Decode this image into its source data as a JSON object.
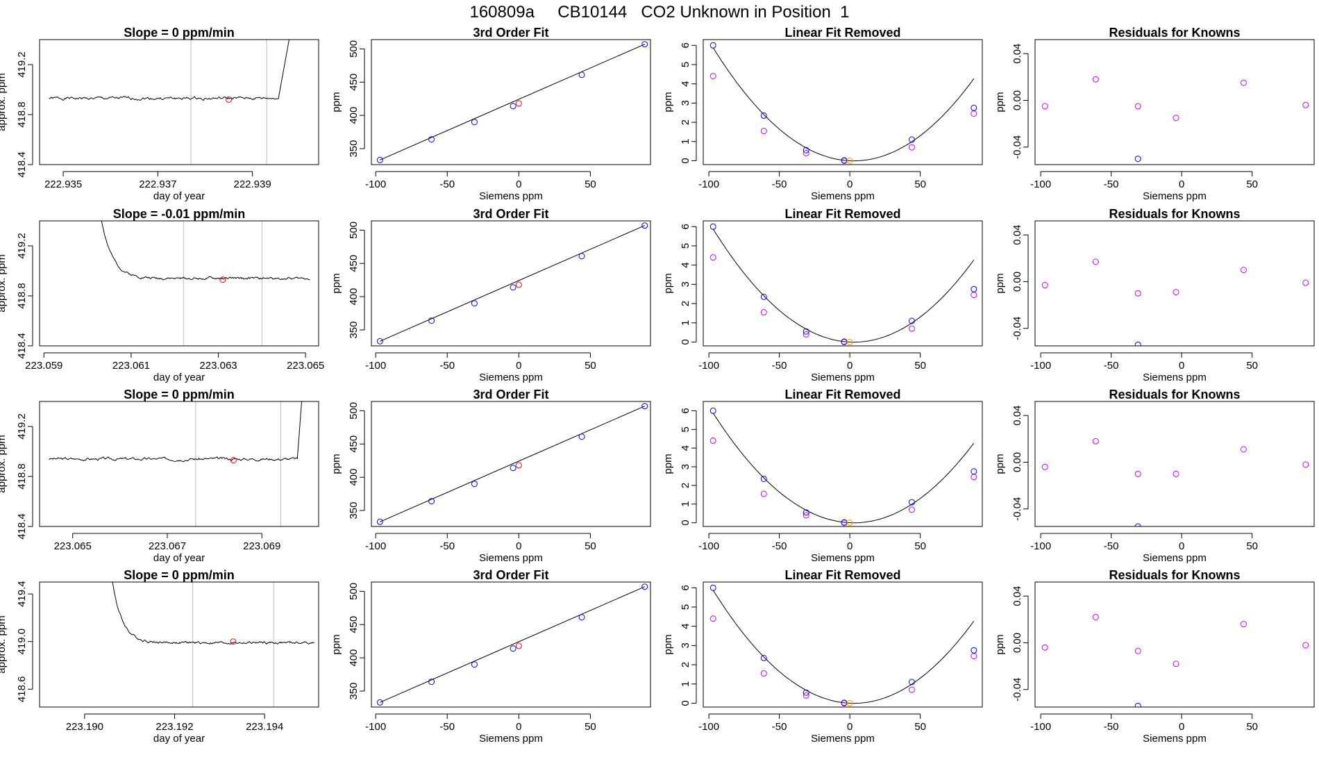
{
  "page": {
    "title": "160809a     CB10144   CO2 Unknown in Position  1"
  },
  "colors": {
    "raw_trace": "#000000",
    "marker_red": "#ff0000",
    "marker_blue": "#0000ff",
    "marker_magenta": "#cc00ff",
    "marker_orange": "#ff9900",
    "vline": "#bbbbbb",
    "fit_line": "#000000"
  },
  "chart_data": [
    {
      "type": "line",
      "title": "Slope =  0  ppm/min",
      "xlabel": "day of year",
      "ylabel": "approx. ppm",
      "xlim": [
        222.9345,
        222.9404
      ],
      "ylim": [
        418.4,
        419.4
      ],
      "xticks": [
        "222.935",
        "222.937",
        "222.939"
      ],
      "xtick_values": [
        222.935,
        222.937,
        222.939
      ],
      "yticks": [
        "418.4",
        "418.8",
        "419.2"
      ],
      "ytick_values": [
        418.4,
        418.8,
        419.2
      ],
      "vlines": [
        222.9377,
        222.9393
      ],
      "trace": {
        "x_start": 222.9347,
        "x_end": 222.93955,
        "y_level": 418.93,
        "noise": 0.012,
        "seed": 1,
        "rise": {
          "x_start": 222.93955,
          "x_end": 222.9398,
          "y_end": 419.45
        }
      },
      "marker": {
        "x": 222.9385,
        "y": 418.92
      }
    },
    {
      "type": "scatter",
      "title": "3rd Order Fit",
      "xlabel": "Siemens ppm",
      "ylabel": "ppm",
      "xlim": [
        -103,
        92
      ],
      "ylim": [
        326,
        514
      ],
      "xticks": [
        "-100",
        "-50",
        "0",
        "50"
      ],
      "xtick_values": [
        -100,
        -50,
        0,
        50
      ],
      "yticks": [
        "350",
        "400",
        "450",
        "500"
      ],
      "ytick_values": [
        350,
        400,
        450,
        500
      ],
      "line": {
        "x": [
          -97,
          88
        ],
        "y": [
          333,
          507
        ]
      },
      "points_blue": {
        "x": [
          -97,
          -61,
          -31,
          -4,
          44,
          88
        ],
        "y": [
          333,
          364,
          390,
          414,
          461,
          507
        ]
      },
      "points_red": {
        "x": [
          0
        ],
        "y": [
          418
        ]
      }
    },
    {
      "type": "scatter",
      "title": "Linear Fit Removed",
      "xlabel": "Siemens ppm",
      "ylabel": "ppm",
      "xlim": [
        -104,
        94
      ],
      "ylim": [
        -0.2,
        6.3
      ],
      "xticks": [
        "-100",
        "-50",
        "0",
        "50"
      ],
      "xtick_values": [
        -100,
        -50,
        0,
        50
      ],
      "yticks": [
        "0",
        "1",
        "2",
        "3",
        "4",
        "5",
        "6"
      ],
      "ytick_values": [
        0,
        1,
        2,
        3,
        4,
        5,
        6
      ],
      "curve": {
        "a": 0.00059,
        "b": -0.0034,
        "c": 0.0
      },
      "points_blue": {
        "x": [
          -97,
          -61,
          -31,
          -4,
          44,
          88
        ],
        "y": [
          6.0,
          2.35,
          0.55,
          0.02,
          1.1,
          2.75
        ]
      },
      "points_magenta": {
        "x": [
          -97,
          -61,
          -31,
          -4,
          44,
          88
        ],
        "y": [
          4.4,
          1.55,
          0.4,
          0.0,
          0.7,
          2.45
        ]
      },
      "points_orange": {
        "x": [
          0
        ],
        "y": [
          0.0
        ]
      }
    },
    {
      "type": "scatter",
      "title": "Residuals for Knowns",
      "xlabel": "Siemens ppm",
      "ylabel": "ppm",
      "xlim": [
        -104,
        94
      ],
      "ylim": [
        -0.055,
        0.052
      ],
      "xticks": [
        "-100",
        "-50",
        "0",
        "50"
      ],
      "xtick_values": [
        -100,
        -50,
        0,
        50
      ],
      "yticks": [
        "-0.04",
        "0.00",
        "0.04"
      ],
      "ytick_values": [
        -0.04,
        0.0,
        0.04
      ],
      "points_magenta": {
        "x": [
          -97,
          -61,
          -31,
          -4,
          44,
          88
        ],
        "y": [
          -0.005,
          0.018,
          -0.005,
          -0.015,
          0.015,
          -0.004
        ]
      },
      "points_blue": {
        "x": [
          -31
        ],
        "y": [
          -0.05
        ]
      }
    },
    {
      "type": "line",
      "title": "Slope =  -0.01  ppm/min",
      "xlabel": "day of year",
      "ylabel": "approx. ppm",
      "xlim": [
        223.0589,
        223.0653
      ],
      "ylim": [
        418.4,
        419.4
      ],
      "xticks": [
        "223.059",
        "223.061",
        "223.063",
        "223.065"
      ],
      "xtick_values": [
        223.059,
        223.061,
        223.063,
        223.065
      ],
      "yticks": [
        "418.4",
        "418.8",
        "419.2"
      ],
      "ytick_values": [
        418.4,
        418.8,
        419.2
      ],
      "vlines": [
        223.0622,
        223.064
      ],
      "trace": {
        "x_start": 223.0603,
        "x_end": 223.0651,
        "y_level": 418.94,
        "noise": 0.01,
        "seed": 2,
        "decay": {
          "y_start": 419.45,
          "tau": 0.00025
        }
      },
      "marker": {
        "x": 223.0631,
        "y": 418.93
      }
    },
    {
      "type": "scatter",
      "title": "3rd Order Fit",
      "xlabel": "Siemens ppm",
      "ylabel": "ppm",
      "xlim": [
        -103,
        92
      ],
      "ylim": [
        326,
        514
      ],
      "xticks": [
        "-100",
        "-50",
        "0",
        "50"
      ],
      "xtick_values": [
        -100,
        -50,
        0,
        50
      ],
      "yticks": [
        "350",
        "400",
        "450",
        "500"
      ],
      "ytick_values": [
        350,
        400,
        450,
        500
      ],
      "line": {
        "x": [
          -97,
          88
        ],
        "y": [
          333,
          507
        ]
      },
      "points_blue": {
        "x": [
          -97,
          -61,
          -31,
          -4,
          44,
          88
        ],
        "y": [
          333,
          364,
          390,
          414,
          461,
          507
        ]
      },
      "points_red": {
        "x": [
          0
        ],
        "y": [
          418
        ]
      }
    },
    {
      "type": "scatter",
      "title": "Linear Fit Removed",
      "xlabel": "Siemens ppm",
      "ylabel": "ppm",
      "xlim": [
        -104,
        94
      ],
      "ylim": [
        -0.2,
        6.3
      ],
      "xticks": [
        "-100",
        "-50",
        "0",
        "50"
      ],
      "xtick_values": [
        -100,
        -50,
        0,
        50
      ],
      "yticks": [
        "0",
        "1",
        "2",
        "3",
        "4",
        "5",
        "6"
      ],
      "ytick_values": [
        0,
        1,
        2,
        3,
        4,
        5,
        6
      ],
      "curve": {
        "a": 0.00059,
        "b": -0.0034,
        "c": 0.0
      },
      "points_blue": {
        "x": [
          -97,
          -61,
          -31,
          -4,
          44,
          88
        ],
        "y": [
          6.0,
          2.35,
          0.55,
          0.02,
          1.1,
          2.75
        ]
      },
      "points_magenta": {
        "x": [
          -97,
          -61,
          -31,
          -4,
          44,
          88
        ],
        "y": [
          4.4,
          1.55,
          0.4,
          0.0,
          0.7,
          2.45
        ]
      },
      "points_orange": {
        "x": [
          0
        ],
        "y": [
          0.0
        ]
      }
    },
    {
      "type": "scatter",
      "title": "Residuals for Knowns",
      "xlabel": "Siemens ppm",
      "ylabel": "ppm",
      "xlim": [
        -104,
        94
      ],
      "ylim": [
        -0.055,
        0.052
      ],
      "xticks": [
        "-100",
        "-50",
        "0",
        "50"
      ],
      "xtick_values": [
        -100,
        -50,
        0,
        50
      ],
      "yticks": [
        "-0.04",
        "0.00",
        "0.04"
      ],
      "ytick_values": [
        -0.04,
        0.0,
        0.04
      ],
      "points_magenta": {
        "x": [
          -97,
          -61,
          -31,
          -4,
          44,
          88
        ],
        "y": [
          -0.003,
          0.017,
          -0.01,
          -0.009,
          0.01,
          -0.001
        ]
      },
      "points_blue": {
        "x": [
          -31
        ],
        "y": [
          -0.054
        ]
      }
    },
    {
      "type": "line",
      "title": "Slope =  0  ppm/min",
      "xlabel": "day of year",
      "ylabel": "approx. ppm",
      "xlim": [
        223.0643,
        223.0702
      ],
      "ylim": [
        418.4,
        419.4
      ],
      "xticks": [
        "223.065",
        "223.067",
        "223.069"
      ],
      "xtick_values": [
        223.065,
        223.067,
        223.069
      ],
      "yticks": [
        "418.4",
        "418.8",
        "419.2"
      ],
      "ytick_values": [
        418.4,
        418.8,
        419.2
      ],
      "vlines": [
        223.0676,
        223.0694
      ],
      "trace": {
        "x_start": 223.0645,
        "x_end": 223.06975,
        "y_level": 418.94,
        "noise": 0.012,
        "seed": 3,
        "rise": {
          "x_start": 223.06975,
          "x_end": 223.06985,
          "y_end": 419.45
        }
      },
      "marker": {
        "x": 223.0684,
        "y": 418.93
      }
    },
    {
      "type": "scatter",
      "title": "3rd Order Fit",
      "xlabel": "Siemens ppm",
      "ylabel": "ppm",
      "xlim": [
        -103,
        92
      ],
      "ylim": [
        326,
        514
      ],
      "xticks": [
        "-100",
        "-50",
        "0",
        "50"
      ],
      "xtick_values": [
        -100,
        -50,
        0,
        50
      ],
      "yticks": [
        "350",
        "400",
        "450",
        "500"
      ],
      "ytick_values": [
        350,
        400,
        450,
        500
      ],
      "line": {
        "x": [
          -97,
          88
        ],
        "y": [
          333,
          507
        ]
      },
      "points_blue": {
        "x": [
          -97,
          -61,
          -31,
          -4,
          44,
          88
        ],
        "y": [
          333,
          364,
          390,
          414,
          461,
          507
        ]
      },
      "points_red": {
        "x": [
          0
        ],
        "y": [
          418
        ]
      }
    },
    {
      "type": "scatter",
      "title": "Linear Fit Removed",
      "xlabel": "Siemens ppm",
      "ylabel": "ppm",
      "xlim": [
        -104,
        94
      ],
      "ylim": [
        -0.2,
        6.5
      ],
      "xticks": [
        "-100",
        "-50",
        "0",
        "50"
      ],
      "xtick_values": [
        -100,
        -50,
        0,
        50
      ],
      "yticks": [
        "0",
        "1",
        "2",
        "3",
        "4",
        "5",
        "6"
      ],
      "ytick_values": [
        0,
        1,
        2,
        3,
        4,
        5,
        6
      ],
      "curve": {
        "a": 0.00059,
        "b": -0.0034,
        "c": 0.0
      },
      "points_blue": {
        "x": [
          -97,
          -61,
          -31,
          -4,
          44,
          88
        ],
        "y": [
          6.0,
          2.35,
          0.55,
          0.02,
          1.1,
          2.75
        ]
      },
      "points_magenta": {
        "x": [
          -97,
          -61,
          -31,
          -4,
          44,
          88
        ],
        "y": [
          4.4,
          1.55,
          0.4,
          0.0,
          0.7,
          2.45
        ]
      },
      "points_orange": {
        "x": [
          0
        ],
        "y": [
          0.0
        ]
      }
    },
    {
      "type": "scatter",
      "title": "Residuals for Knowns",
      "xlabel": "Siemens ppm",
      "ylabel": "ppm",
      "xlim": [
        -104,
        94
      ],
      "ylim": [
        -0.055,
        0.052
      ],
      "xticks": [
        "-100",
        "-50",
        "0",
        "50"
      ],
      "xtick_values": [
        -100,
        -50,
        0,
        50
      ],
      "yticks": [
        "-0.04",
        "0.00",
        "0.04"
      ],
      "ytick_values": [
        -0.04,
        0.0,
        0.04
      ],
      "points_magenta": {
        "x": [
          -97,
          -61,
          -31,
          -4,
          44,
          88
        ],
        "y": [
          -0.004,
          0.018,
          -0.01,
          -0.01,
          0.011,
          -0.002
        ]
      },
      "points_blue": {
        "x": [
          -31
        ],
        "y": [
          -0.055
        ]
      }
    },
    {
      "type": "line",
      "title": "Slope =  0  ppm/min",
      "xlabel": "day of year",
      "ylabel": "approx. ppm",
      "xlim": [
        223.189,
        223.1952
      ],
      "ylim": [
        418.45,
        419.5
      ],
      "xticks": [
        "223.190",
        "223.192",
        "223.194"
      ],
      "xtick_values": [
        223.19,
        223.192,
        223.194
      ],
      "yticks": [
        "418.6",
        "419.0",
        "419.4"
      ],
      "ytick_values": [
        418.6,
        419.0,
        419.4
      ],
      "vlines": [
        223.1924,
        223.1942
      ],
      "trace": {
        "x_start": 223.1906,
        "x_end": 223.1951,
        "y_level": 418.99,
        "noise": 0.011,
        "seed": 4,
        "decay": {
          "y_start": 419.55,
          "tau": 0.00022
        }
      },
      "marker": {
        "x": 223.1933,
        "y": 419.0
      }
    },
    {
      "type": "scatter",
      "title": "3rd Order Fit",
      "xlabel": "Siemens ppm",
      "ylabel": "ppm",
      "xlim": [
        -103,
        92
      ],
      "ylim": [
        326,
        514
      ],
      "xticks": [
        "-100",
        "-50",
        "0",
        "50"
      ],
      "xtick_values": [
        -100,
        -50,
        0,
        50
      ],
      "yticks": [
        "350",
        "400",
        "450",
        "500"
      ],
      "ytick_values": [
        350,
        400,
        450,
        500
      ],
      "line": {
        "x": [
          -97,
          88
        ],
        "y": [
          333,
          507
        ]
      },
      "points_blue": {
        "x": [
          -97,
          -61,
          -31,
          -4,
          44,
          88
        ],
        "y": [
          333,
          364,
          390,
          414,
          461,
          507
        ]
      },
      "points_red": {
        "x": [
          0
        ],
        "y": [
          418
        ]
      }
    },
    {
      "type": "scatter",
      "title": "Linear Fit Removed",
      "xlabel": "Siemens ppm",
      "ylabel": "ppm",
      "xlim": [
        -104,
        94
      ],
      "ylim": [
        -0.2,
        6.3
      ],
      "xticks": [
        "-100",
        "-50",
        "0",
        "50"
      ],
      "xtick_values": [
        -100,
        -50,
        0,
        50
      ],
      "yticks": [
        "0",
        "1",
        "2",
        "3",
        "4",
        "5",
        "6"
      ],
      "ytick_values": [
        0,
        1,
        2,
        3,
        4,
        5,
        6
      ],
      "curve": {
        "a": 0.00059,
        "b": -0.0034,
        "c": 0.0
      },
      "points_blue": {
        "x": [
          -97,
          -61,
          -31,
          -4,
          44,
          88
        ],
        "y": [
          6.0,
          2.35,
          0.55,
          0.02,
          1.1,
          2.75
        ]
      },
      "points_magenta": {
        "x": [
          -97,
          -61,
          -31,
          -4,
          44,
          88
        ],
        "y": [
          4.4,
          1.55,
          0.4,
          0.0,
          0.7,
          2.45
        ]
      },
      "points_orange": {
        "x": [
          0
        ],
        "y": [
          0.0
        ]
      }
    },
    {
      "type": "scatter",
      "title": "Residuals for Knowns",
      "xlabel": "Siemens ppm",
      "ylabel": "ppm",
      "xlim": [
        -104,
        94
      ],
      "ylim": [
        -0.055,
        0.052
      ],
      "xticks": [
        "-100",
        "-50",
        "0",
        "50"
      ],
      "xtick_values": [
        -100,
        -50,
        0,
        50
      ],
      "yticks": [
        "-0.04",
        "0.00",
        "0.04"
      ],
      "ytick_values": [
        -0.04,
        0.0,
        0.04
      ],
      "points_magenta": {
        "x": [
          -97,
          -61,
          -31,
          -4,
          44,
          88
        ],
        "y": [
          -0.004,
          0.022,
          -0.007,
          -0.018,
          0.016,
          -0.002
        ]
      },
      "points_blue": {
        "x": [
          -31
        ],
        "y": [
          -0.054
        ]
      }
    }
  ]
}
